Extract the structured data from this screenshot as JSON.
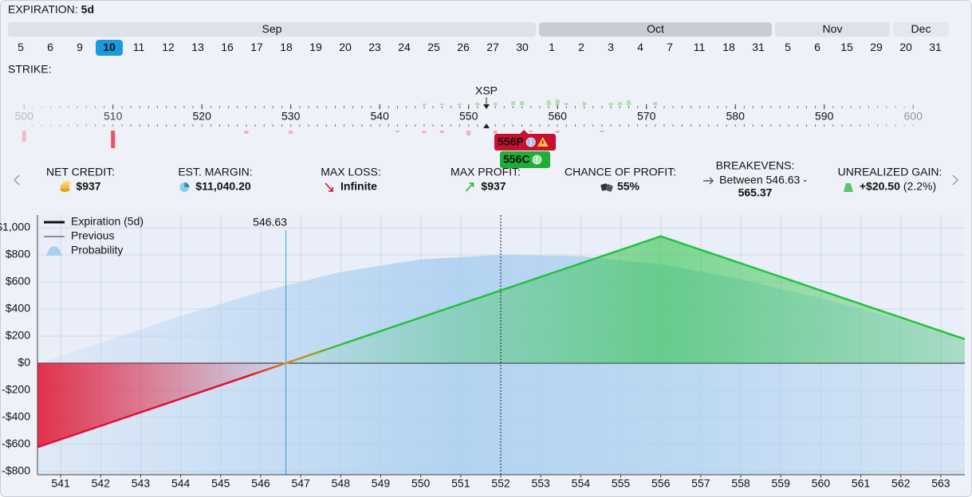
{
  "expiration": {
    "label": "EXPIRATION:",
    "value": "5d",
    "months": [
      {
        "name": "Sep",
        "color": "#dde1ea",
        "selected": 10,
        "dates": [
          5,
          6,
          9,
          10,
          11,
          12,
          13,
          16,
          17,
          18,
          19,
          20,
          23,
          24,
          25,
          26,
          27,
          30
        ]
      },
      {
        "name": "Oct",
        "color": "#c9ccd5",
        "dates": [
          1,
          2,
          3,
          4,
          7,
          11,
          18,
          31
        ]
      },
      {
        "name": "Nov",
        "color": "#dde1ea",
        "dates": [
          5,
          6,
          15,
          29
        ]
      },
      {
        "name": "Dec",
        "color": "#e4e7ee",
        "disabled": true,
        "dates": [
          20,
          31
        ]
      }
    ]
  },
  "strike": {
    "label": "STRIKE:",
    "symbol": "XSP",
    "price": 552,
    "ticks": [
      500,
      510,
      520,
      530,
      540,
      550,
      560,
      570,
      580,
      590,
      600
    ],
    "calls": {
      "strikes": [
        545,
        547,
        549,
        551,
        553,
        555,
        556,
        559,
        560,
        561,
        563,
        566,
        567,
        568,
        571
      ],
      "sizes": [
        2,
        2,
        2,
        3,
        3,
        5,
        5,
        6,
        7,
        3,
        4,
        3,
        4,
        6,
        4
      ]
    },
    "puts": {
      "strikes": [
        500,
        510,
        525,
        530,
        542,
        545,
        547,
        550,
        553,
        557,
        560,
        565
      ],
      "sizes": [
        14,
        22,
        4,
        4,
        2,
        3,
        3,
        6,
        4,
        2,
        3,
        2
      ]
    },
    "legs": [
      {
        "label": "556P",
        "color": "#c8102e",
        "warning": true
      },
      {
        "label": "556C",
        "color": "#1fae3a"
      }
    ]
  },
  "metrics": [
    {
      "label": "NET CREDIT:",
      "value": "$937",
      "icon": "coins"
    },
    {
      "label": "EST. MARGIN:",
      "value": "$11,040.20",
      "icon": "pie"
    },
    {
      "label": "MAX LOSS:",
      "value": "Infinite",
      "icon": "down"
    },
    {
      "label": "MAX PROFIT:",
      "value": "$937",
      "icon": "up"
    },
    {
      "label": "CHANCE OF PROFIT:",
      "value": "55%",
      "icon": "dice"
    },
    {
      "label": "BREAKEVENS:",
      "value": "Between 546.63 -",
      "value2": "565.37",
      "icon": "right"
    },
    {
      "label": "UNREALIZED GAIN:",
      "value": "+$20.50",
      "note": "(2.2%)",
      "icon": "bag"
    }
  ],
  "chart_data": {
    "type": "line",
    "series": [
      {
        "name": "Expiration (5d)",
        "color": "#22c23a",
        "loss_color": "#e0102e",
        "x": [
          540.42,
          546.63,
          556,
          563.6
        ],
        "values": [
          -621,
          0,
          937,
          177
        ]
      },
      {
        "name": "Previous",
        "color": "#8a8f99"
      },
      {
        "name": "Probability",
        "color": "#a9cff0",
        "x": [
          540.42,
          542,
          544,
          546,
          548,
          550,
          552,
          554,
          556,
          558,
          560,
          562,
          563.6
        ],
        "values": [
          -5,
          150,
          347,
          527,
          673,
          767,
          800,
          790,
          730,
          620,
          480,
          320,
          170
        ]
      }
    ],
    "markers": {
      "breakeven": 546.63,
      "price": 552
    },
    "xlim": [
      540.42,
      563.6
    ],
    "ylim": [
      -824,
      1094
    ],
    "xticks": [
      541,
      542,
      543,
      544,
      545,
      546,
      547,
      548,
      549,
      550,
      551,
      552,
      553,
      554,
      555,
      556,
      557,
      558,
      559,
      560,
      561,
      562,
      563
    ],
    "yticks": [
      {
        "value": -800,
        "label": "-$800"
      },
      {
        "value": -600,
        "label": "-$600"
      },
      {
        "value": -400,
        "label": "-$400"
      },
      {
        "value": -200,
        "label": "-$200"
      },
      {
        "value": 0,
        "label": "$0"
      },
      {
        "value": 200,
        "label": "$200"
      },
      {
        "value": 400,
        "label": "$400"
      },
      {
        "value": 600,
        "label": "$600"
      },
      {
        "value": 800,
        "label": "$800"
      },
      {
        "value": 1000,
        "label": "$1,000"
      }
    ],
    "grid": true,
    "legend_position": "upper left"
  }
}
